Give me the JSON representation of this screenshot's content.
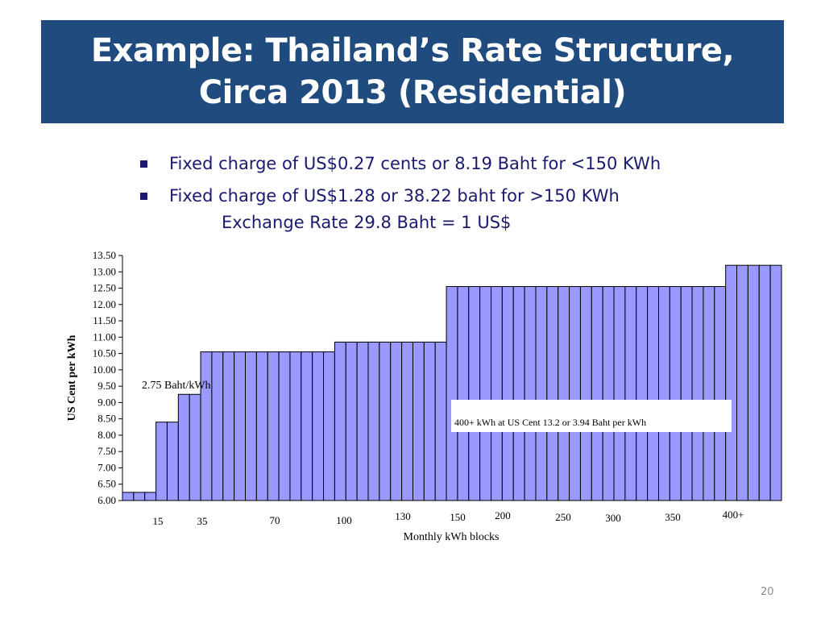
{
  "slide": {
    "title_line1": "Example: Thailand’s Rate Structure,",
    "title_line2": "Circa 2013 (Residential)",
    "bullets": [
      "Fixed charge of US$0.27 cents or 8.19 Baht for <150 KWh",
      "Fixed charge of US$1.28 or 38.22 baht for >150 KWh"
    ],
    "exchange_rate": "Exchange Rate 29.8 Baht = 1 US$",
    "page_number": "20"
  },
  "colors": {
    "title_background": "#204b7e",
    "title_text": "#ffffff",
    "bullet_text": "#1a1a6e",
    "bar_fill": "#9999ff",
    "bar_stroke": "#000000"
  },
  "chart_data": {
    "type": "bar",
    "xlabel": "Monthly kWh blocks",
    "ylabel": "US Cent per kWh",
    "ylim": [
      6.0,
      13.5
    ],
    "yticks": [
      "6.00",
      "6.50",
      "7.00",
      "7.50",
      "8.00",
      "8.50",
      "9.00",
      "9.50",
      "10.00",
      "10.50",
      "11.00",
      "11.50",
      "12.00",
      "12.50",
      "13.00",
      "13.50"
    ],
    "xtick_labels": [
      "15",
      "35",
      "70",
      "100",
      "130",
      "150",
      "200",
      "250",
      "300",
      "350",
      "400+"
    ],
    "grid": false,
    "legend": "none",
    "values": [
      6.25,
      6.25,
      6.25,
      8.4,
      8.4,
      9.25,
      9.25,
      10.55,
      10.55,
      10.55,
      10.55,
      10.55,
      10.55,
      10.55,
      10.55,
      10.55,
      10.55,
      10.55,
      10.55,
      10.85,
      10.85,
      10.85,
      10.85,
      10.85,
      10.85,
      10.85,
      10.85,
      10.85,
      10.85,
      12.55,
      12.55,
      12.55,
      12.55,
      12.55,
      12.55,
      12.55,
      12.55,
      12.55,
      12.55,
      12.55,
      12.55,
      12.55,
      12.55,
      12.55,
      12.55,
      12.55,
      12.55,
      12.55,
      12.55,
      12.55,
      12.55,
      12.55,
      12.55,
      12.55,
      13.2,
      13.2,
      13.2,
      13.2,
      13.2
    ],
    "annotations": [
      "2.75 Baht/kWh",
      "400+ kWh at US Cent 13.2 or 3.94 Baht per kWh"
    ]
  }
}
